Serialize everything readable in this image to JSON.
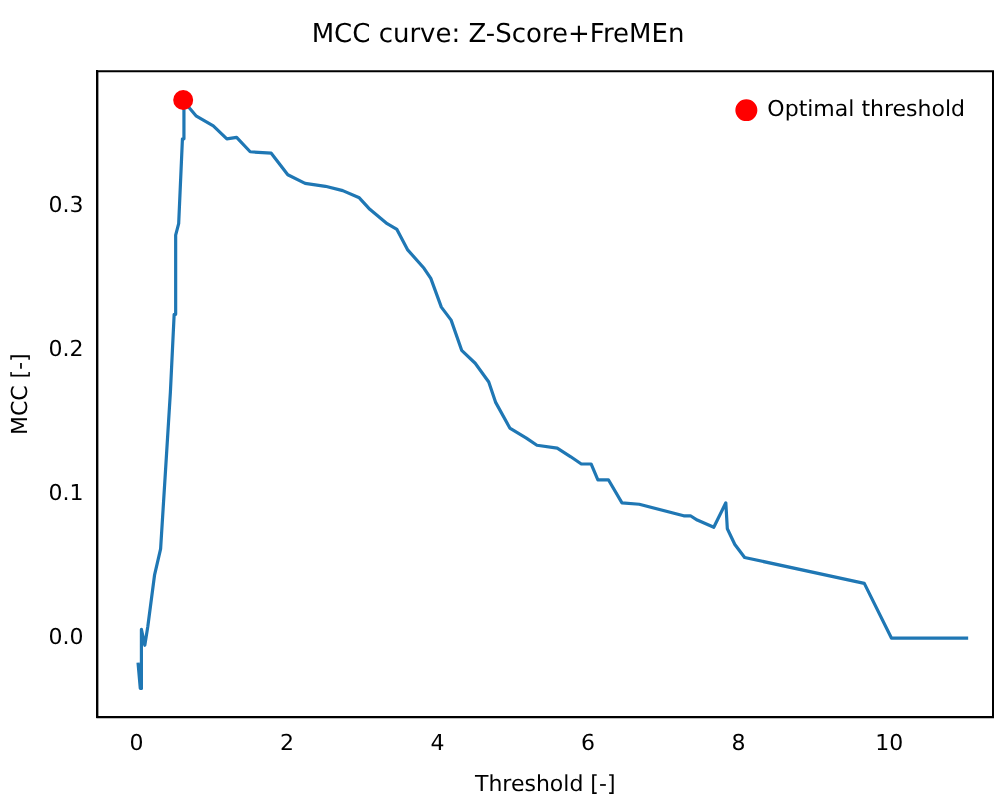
{
  "chart_data": {
    "type": "line",
    "title": "MCC curve: Z-Score+FreMEn",
    "xlabel": "Threshold [-]",
    "ylabel": "MCC [-]",
    "xlim": [
      -0.52,
      11.38
    ],
    "ylim": [
      -0.055,
      0.394
    ],
    "xticks": [
      0,
      2,
      4,
      6,
      8,
      10
    ],
    "yticks": [
      {
        "value": 0,
        "label": "0.0"
      },
      {
        "value": 0.1,
        "label": "0.1"
      },
      {
        "value": 0.2,
        "label": "0.2"
      },
      {
        "value": 0.3,
        "label": "0.3"
      }
    ],
    "grid": false,
    "legend": "top right",
    "marker": "none",
    "line_style": "solid",
    "series": [
      {
        "color": "#1f77b4",
        "x": [
          0.02,
          0.05,
          0.065,
          0.11,
          0.15,
          0.24,
          0.32,
          0.38,
          0.45,
          0.5,
          0.52,
          0.56,
          0.61,
          0.63,
          0.79,
          1.02,
          1.2,
          1.33,
          1.51,
          1.79,
          2.01,
          2.24,
          2.51,
          2.74,
          2.96,
          3.1,
          3.33,
          3.46,
          3.6,
          3.82,
          3.91,
          4.05,
          4.18,
          4.32,
          4.5,
          4.68,
          4.77,
          4.96,
          5.18,
          5.32,
          5.59,
          5.77,
          5.91,
          6.04,
          6.13,
          6.27,
          6.45,
          6.68,
          7.27,
          7.36,
          7.45,
          7.67,
          7.83,
          7.85,
          7.95,
          8.08,
          9.67,
          10.03,
          11.05
        ],
        "values": [
          -0.017,
          -0.035,
          0.006,
          -0.005,
          0.008,
          0.044,
          0.062,
          0.112,
          0.171,
          0.225,
          0.28,
          0.288,
          0.347,
          0.373,
          0.363,
          0.356,
          0.347,
          0.348,
          0.338,
          0.337,
          0.322,
          0.316,
          0.314,
          0.311,
          0.306,
          0.298,
          0.288,
          0.284,
          0.27,
          0.257,
          0.25,
          0.23,
          0.221,
          0.2,
          0.191,
          0.178,
          0.164,
          0.146,
          0.139,
          0.134,
          0.132,
          0.126,
          0.121,
          0.121,
          0.11,
          0.11,
          0.094,
          0.093,
          0.085,
          0.085,
          0.082,
          0.077,
          0.094,
          0.076,
          0.065,
          0.056,
          0.038,
          0,
          0
        ]
      },
      {
        "type": "scatter",
        "name": "Optimal threshold",
        "color": "#ff0000",
        "marker": "circle",
        "x": [
          0.62
        ],
        "values": [
          0.374
        ]
      }
    ]
  }
}
